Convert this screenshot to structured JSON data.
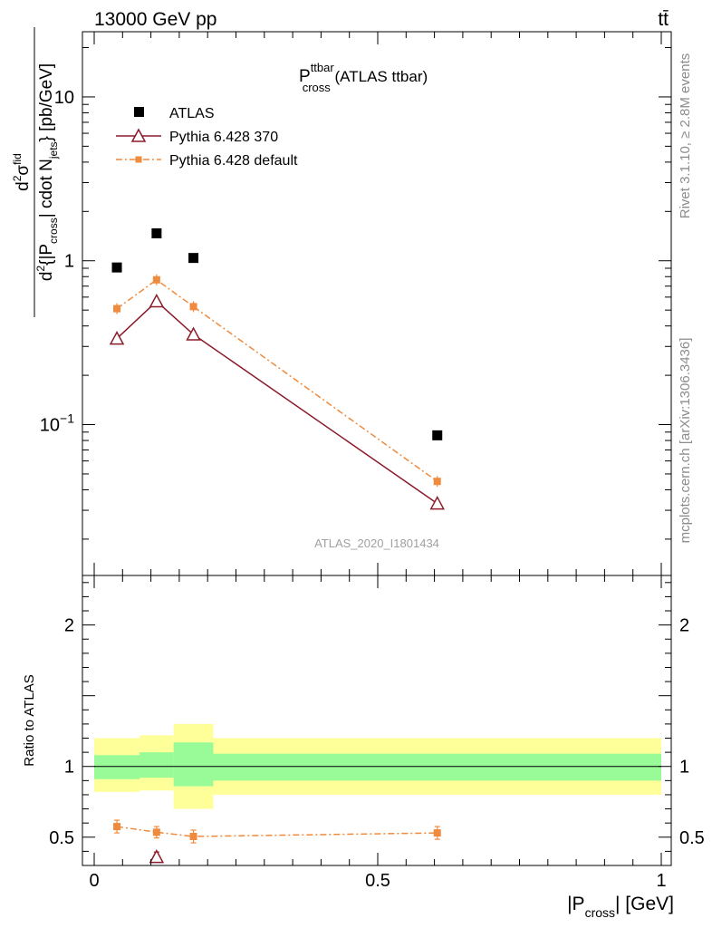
{
  "header": {
    "energy": "13000 GeV pp",
    "process": "tt̄"
  },
  "side_labels": {
    "rivet": "Rivet 3.1.10, ≥ 2.8M events",
    "mcplots": "mcplots.cern.ch [arXiv:1306.3436]"
  },
  "analysis_id": "ATLAS_2020_I1801434",
  "chart_data": [
    {
      "type": "scatter",
      "panel": "main",
      "title_main": "P",
      "title_sup": "ttbar",
      "title_sub": "cross",
      "title_suffix": " (ATLAS ttbar)",
      "ylabel": {
        "num_d": "d",
        "num_sup": "2",
        "num_sigma": "σ",
        "num_fid": "fid",
        "den_d": "d",
        "den_sup": "2",
        "den_open": "{|P",
        "den_cross": "cross",
        "den_mid": "| cdot N",
        "den_jets": "jets",
        "den_close": "} [pb/GeV]"
      },
      "y_scale": "log",
      "ylim": [
        0.012,
        25
      ],
      "xlim": [
        -0.02,
        1.0
      ],
      "y_ticks": [
        {
          "value": 10,
          "label": "10"
        },
        {
          "value": 1,
          "label": "1"
        },
        {
          "value": 0.1,
          "label": "10",
          "sup": "−1"
        }
      ],
      "legend_position": "top-left",
      "series": [
        {
          "name": "ATLAS",
          "color": "#000000",
          "marker": "square-filled",
          "x": [
            0.04,
            0.11,
            0.175,
            0.605
          ],
          "y": [
            0.91,
            1.47,
            1.04,
            0.086
          ]
        },
        {
          "name": "Pythia 6.428 370",
          "color": "#8b1a2b",
          "marker": "triangle-open",
          "line": "solid",
          "x": [
            0.04,
            0.11,
            0.175,
            0.605
          ],
          "y": [
            0.335,
            0.565,
            0.355,
            0.033
          ]
        },
        {
          "name": "Pythia 6.428 default",
          "color": "#f08a3c",
          "marker": "square-small",
          "line": "dashdot",
          "x": [
            0.04,
            0.11,
            0.175,
            0.605
          ],
          "y": [
            0.51,
            0.765,
            0.525,
            0.045
          ]
        }
      ]
    },
    {
      "type": "scatter",
      "panel": "ratio",
      "ylabel": "Ratio to ATLAS",
      "xlabel": "|P",
      "xlabel_sub": "cross",
      "xlabel_suffix": "| [GeV]",
      "ylim": [
        0.3,
        2.35
      ],
      "xlim": [
        -0.02,
        1.0
      ],
      "x_ticks": [
        {
          "value": 0,
          "label": "0"
        },
        {
          "value": 0.5,
          "label": "0.5"
        },
        {
          "value": 1,
          "label": "1"
        }
      ],
      "y_ticks": [
        {
          "value": 0.5,
          "label": "0.5"
        },
        {
          "value": 1,
          "label": "1"
        },
        {
          "value": 2,
          "label": "2"
        }
      ],
      "bands": [
        {
          "x0": 0.0,
          "x1": 0.08,
          "inner": [
            0.91,
            1.08
          ],
          "outer": [
            0.82,
            1.2
          ]
        },
        {
          "x0": 0.08,
          "x1": 0.14,
          "inner": [
            0.92,
            1.1
          ],
          "outer": [
            0.83,
            1.22
          ]
        },
        {
          "x0": 0.14,
          "x1": 0.21,
          "inner": [
            0.86,
            1.17
          ],
          "outer": [
            0.7,
            1.3
          ]
        },
        {
          "x0": 0.21,
          "x1": 1.0,
          "inner": [
            0.9,
            1.09
          ],
          "outer": [
            0.8,
            1.2
          ]
        }
      ],
      "band_colors": {
        "inner": "#98fb98",
        "outer": "#ffff99"
      },
      "series": [
        {
          "name": "Pythia 6.428 370",
          "color": "#8b1a2b",
          "x": [
            0.11
          ],
          "y": [
            0.36
          ],
          "err": [
            0.035
          ]
        },
        {
          "name": "Pythia 6.428 default",
          "color": "#f08a3c",
          "x": [
            0.04,
            0.11,
            0.175,
            0.605
          ],
          "y": [
            0.575,
            0.535,
            0.505,
            0.53
          ],
          "err": [
            0.045,
            0.04,
            0.045,
            0.045
          ]
        }
      ]
    }
  ]
}
